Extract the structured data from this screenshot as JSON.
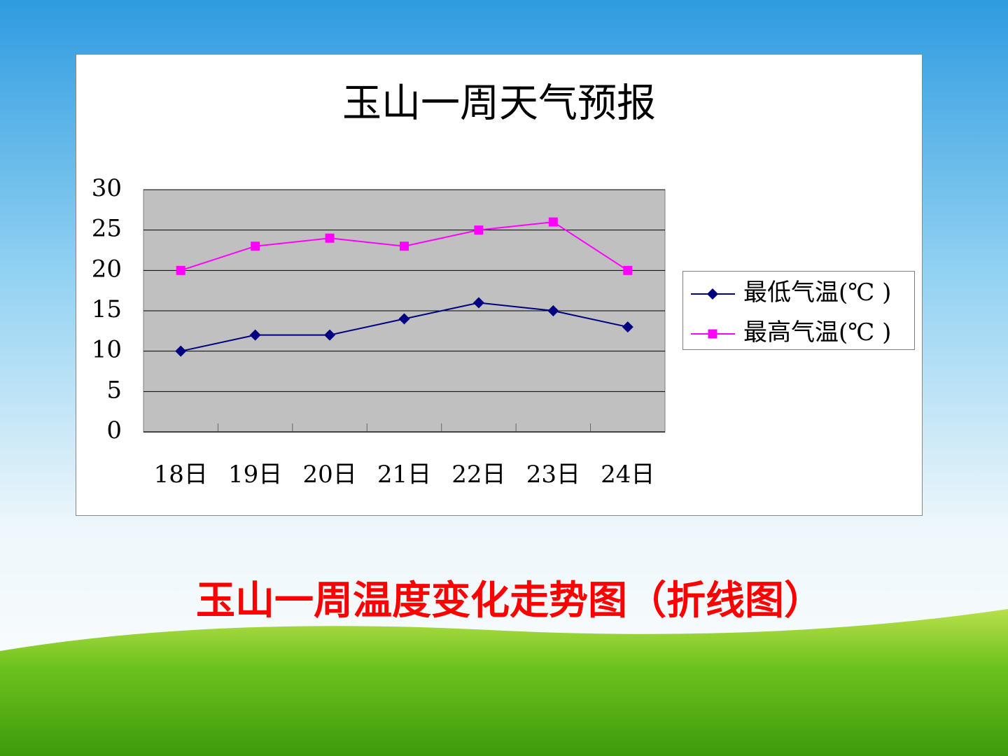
{
  "chart_data": {
    "type": "line",
    "title": "玉山一周天气预报",
    "categories": [
      "18日",
      "19日",
      "20日",
      "21日",
      "22日",
      "23日",
      "24日"
    ],
    "series": [
      {
        "name": "最低气温(℃ )",
        "color": "#000080",
        "marker": "diamond",
        "values": [
          10,
          12,
          12,
          14,
          16,
          15,
          13
        ]
      },
      {
        "name": "最高气温(℃ )",
        "color": "#ff00ff",
        "marker": "square",
        "values": [
          20,
          23,
          24,
          23,
          25,
          26,
          20
        ]
      }
    ],
    "ylim": [
      0,
      30
    ],
    "yticks": [
      0,
      5,
      10,
      15,
      20,
      25,
      30
    ],
    "grid": true,
    "legend": "right"
  },
  "slide": {
    "caption": "玉山一周温度变化走势图（折线图）"
  }
}
